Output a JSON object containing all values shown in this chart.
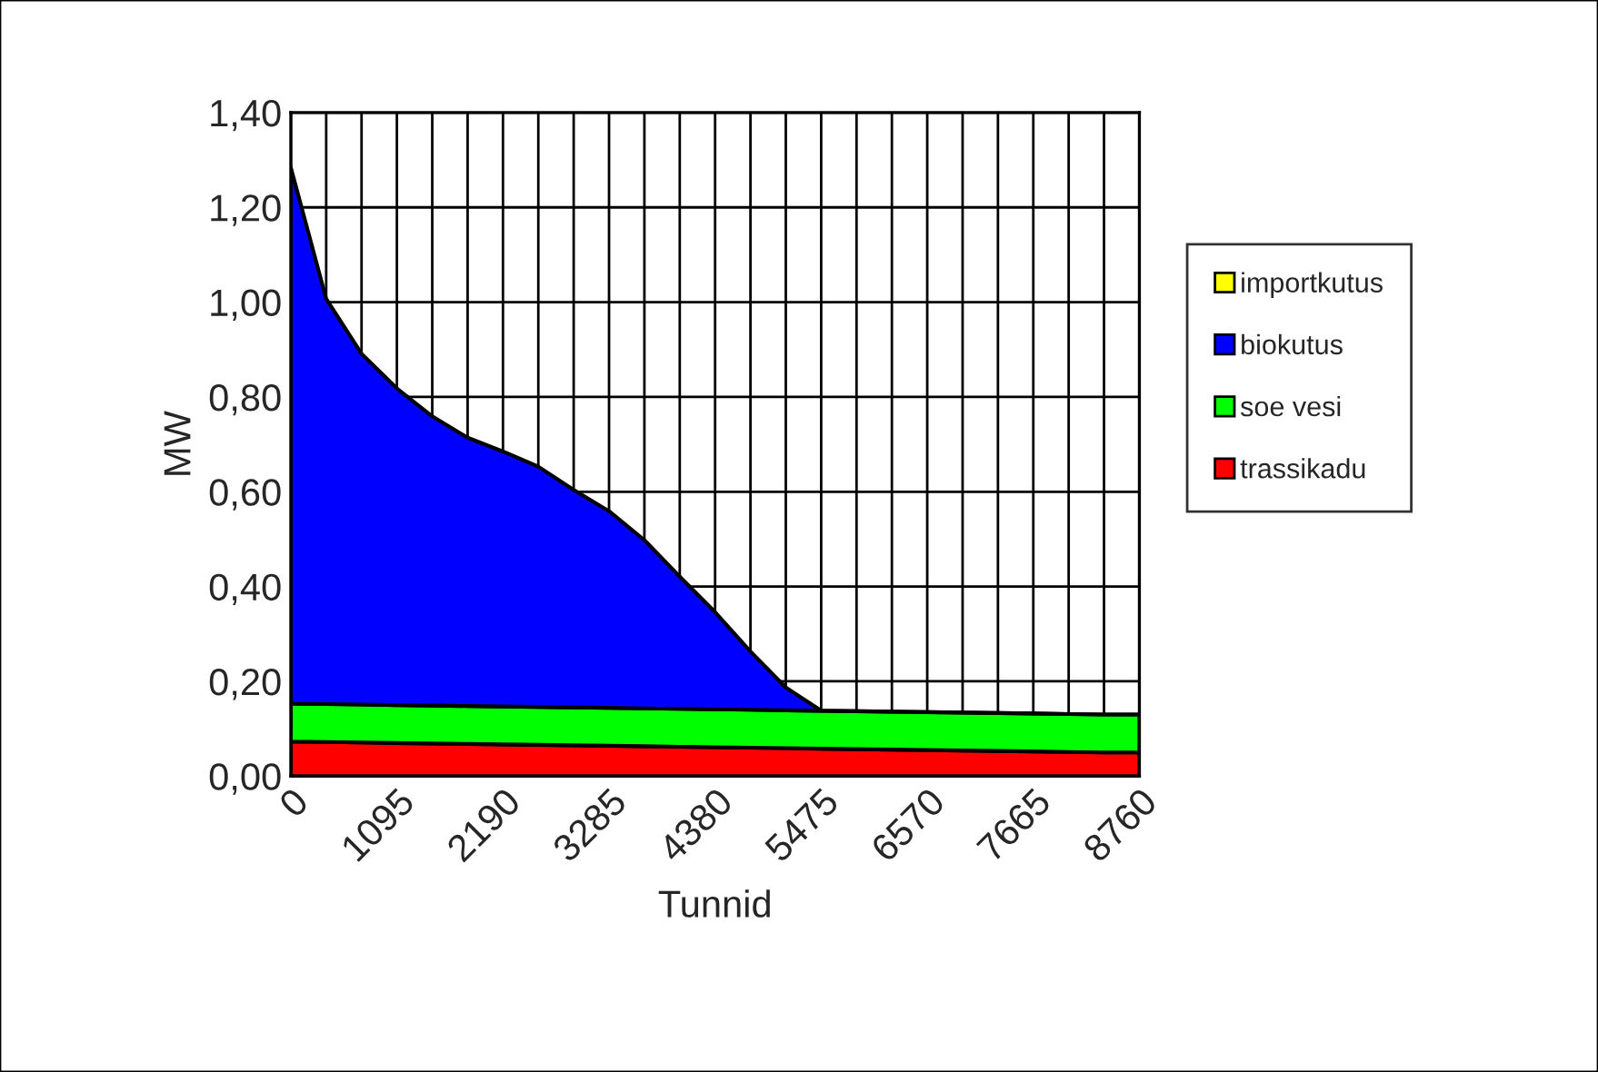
{
  "chart_data": {
    "type": "area",
    "stacked": true,
    "xlabel": "Tunnid",
    "ylabel": "MW",
    "x": [
      0,
      365,
      730,
      1095,
      1460,
      1825,
      2190,
      2555,
      2920,
      3285,
      3650,
      4015,
      4380,
      4745,
      5110,
      5475,
      5840,
      6205,
      6570,
      6935,
      7300,
      7665,
      8030,
      8395,
      8760
    ],
    "series": [
      {
        "name": "trassikadu",
        "color": "#ff0000",
        "values": [
          0.073,
          0.072,
          0.071,
          0.07,
          0.069,
          0.068,
          0.067,
          0.066,
          0.065,
          0.064,
          0.063,
          0.062,
          0.061,
          0.06,
          0.059,
          0.058,
          0.057,
          0.056,
          0.055,
          0.054,
          0.053,
          0.052,
          0.051,
          0.05,
          0.05
        ]
      },
      {
        "name": "soe vesi",
        "color": "#00ff00",
        "values": [
          0.08,
          0.08,
          0.08,
          0.08,
          0.08,
          0.08,
          0.08,
          0.08,
          0.08,
          0.08,
          0.08,
          0.08,
          0.08,
          0.08,
          0.08,
          0.08,
          0.08,
          0.08,
          0.08,
          0.08,
          0.08,
          0.08,
          0.08,
          0.08,
          0.08
        ]
      },
      {
        "name": "biokutus",
        "color": "#0000ff",
        "values": [
          1.131,
          0.855,
          0.74,
          0.668,
          0.61,
          0.566,
          0.538,
          0.507,
          0.459,
          0.415,
          0.355,
          0.279,
          0.205,
          0.123,
          0.048,
          0,
          0,
          0,
          0,
          0,
          0,
          0,
          0,
          0,
          0
        ]
      },
      {
        "name": "importkutus",
        "color": "#ffff00",
        "values": [
          null,
          null,
          null,
          null,
          null,
          null,
          null,
          null,
          null,
          null,
          null,
          null,
          null,
          null,
          null,
          null,
          null,
          null,
          null,
          null,
          null,
          null,
          null,
          null,
          null
        ]
      }
    ],
    "xlim": [
      0,
      8760
    ],
    "xticks": [
      0,
      {
        "value": 365,
        "label": null
      },
      {
        "value": 730,
        "label": null
      },
      1095,
      {
        "value": 1460,
        "label": null
      },
      {
        "value": 1825,
        "label": null
      },
      2190,
      {
        "value": 2555,
        "label": null
      },
      {
        "value": 2920,
        "label": null
      },
      3285,
      {
        "value": 3650,
        "label": null
      },
      {
        "value": 4015,
        "label": null
      },
      4380,
      {
        "value": 4745,
        "label": null
      },
      {
        "value": 5110,
        "label": null
      },
      5475,
      {
        "value": 5840,
        "label": null
      },
      {
        "value": 6205,
        "label": null
      },
      6570,
      {
        "value": 6935,
        "label": null
      },
      {
        "value": 7300,
        "label": null
      },
      7665,
      {
        "value": 8030,
        "label": null
      },
      {
        "value": 8395,
        "label": null
      },
      8760
    ],
    "ylim": [
      0,
      1.4
    ],
    "yticks": [
      {
        "value": 0,
        "label": "0,00"
      },
      {
        "value": 0.2,
        "label": "0,20"
      },
      {
        "value": 0.4,
        "label": "0,40"
      },
      {
        "value": 0.6,
        "label": "0,60"
      },
      {
        "value": 0.8,
        "label": "0,80"
      },
      {
        "value": 1.0,
        "label": "1,00"
      },
      {
        "value": 1.2,
        "label": "1,20"
      },
      {
        "value": 1.4,
        "label": "1,40"
      }
    ],
    "grid": true,
    "legend": "right"
  }
}
